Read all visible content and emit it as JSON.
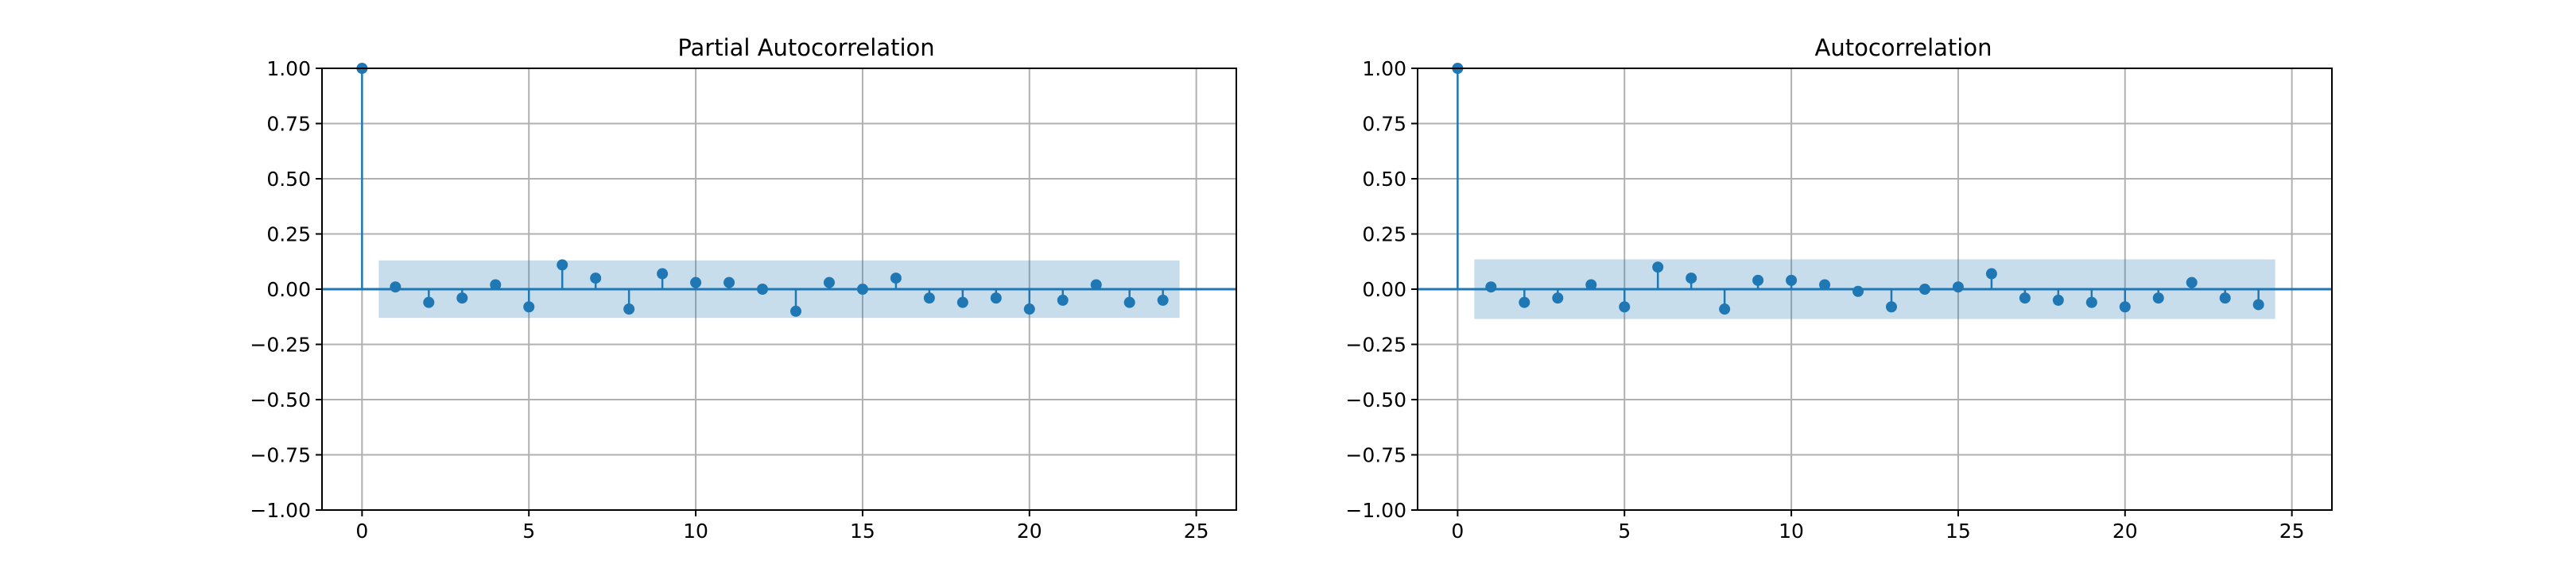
{
  "colors": {
    "series": "#1f77b4",
    "confidence_band": "#1f77b4",
    "grid": "#b0b0b0",
    "axis": "#000000"
  },
  "chart_data": [
    {
      "type": "stem",
      "title": "Partial Autocorrelation",
      "xlabel": "",
      "ylabel": "",
      "xlim": [
        -1.2,
        26.2
      ],
      "ylim": [
        -1.0,
        1.0
      ],
      "x_ticks": [
        0,
        5,
        10,
        15,
        20,
        25
      ],
      "y_ticks": [
        1.0,
        0.75,
        0.5,
        0.25,
        0.0,
        -0.25,
        -0.5,
        -0.75,
        -1.0
      ],
      "x_tick_labels": [
        "0",
        "5",
        "10",
        "15",
        "20",
        "25"
      ],
      "y_tick_labels": [
        "1.00",
        "0.75",
        "0.50",
        "0.25",
        "0.00",
        "−0.25",
        "−0.50",
        "−0.75",
        "−1.00"
      ],
      "grid": true,
      "lags": [
        0,
        1,
        2,
        3,
        4,
        5,
        6,
        7,
        8,
        9,
        10,
        11,
        12,
        13,
        14,
        15,
        16,
        17,
        18,
        19,
        20,
        21,
        22,
        23,
        24
      ],
      "values": [
        1.0,
        0.01,
        -0.06,
        -0.04,
        0.02,
        -0.08,
        0.11,
        0.05,
        -0.09,
        0.07,
        0.03,
        0.03,
        0.0,
        -0.1,
        0.03,
        0.0,
        0.05,
        -0.04,
        -0.06,
        -0.04,
        -0.09,
        -0.05,
        0.02,
        -0.06,
        -0.05
      ],
      "confidence_band": {
        "x": [
          0.5,
          24.5
        ],
        "lower": -0.13,
        "upper": 0.13
      }
    },
    {
      "type": "stem",
      "title": "Autocorrelation",
      "xlabel": "",
      "ylabel": "",
      "xlim": [
        -1.2,
        26.2
      ],
      "ylim": [
        -1.0,
        1.0
      ],
      "x_ticks": [
        0,
        5,
        10,
        15,
        20,
        25
      ],
      "y_ticks": [
        1.0,
        0.75,
        0.5,
        0.25,
        0.0,
        -0.25,
        -0.5,
        -0.75,
        -1.0
      ],
      "x_tick_labels": [
        "0",
        "5",
        "10",
        "15",
        "20",
        "25"
      ],
      "y_tick_labels": [
        "1.00",
        "0.75",
        "0.50",
        "0.25",
        "0.00",
        "−0.25",
        "−0.50",
        "−0.75",
        "−1.00"
      ],
      "grid": true,
      "lags": [
        0,
        1,
        2,
        3,
        4,
        5,
        6,
        7,
        8,
        9,
        10,
        11,
        12,
        13,
        14,
        15,
        16,
        17,
        18,
        19,
        20,
        21,
        22,
        23,
        24
      ],
      "values": [
        1.0,
        0.01,
        -0.06,
        -0.04,
        0.02,
        -0.08,
        0.1,
        0.05,
        -0.09,
        0.04,
        0.04,
        0.02,
        -0.01,
        -0.08,
        0.0,
        0.01,
        0.07,
        -0.04,
        -0.05,
        -0.06,
        -0.08,
        -0.04,
        0.03,
        -0.04,
        -0.07
      ],
      "confidence_band": {
        "x": [
          0.5,
          24.5
        ],
        "lower": -0.135,
        "upper": 0.135
      }
    }
  ]
}
